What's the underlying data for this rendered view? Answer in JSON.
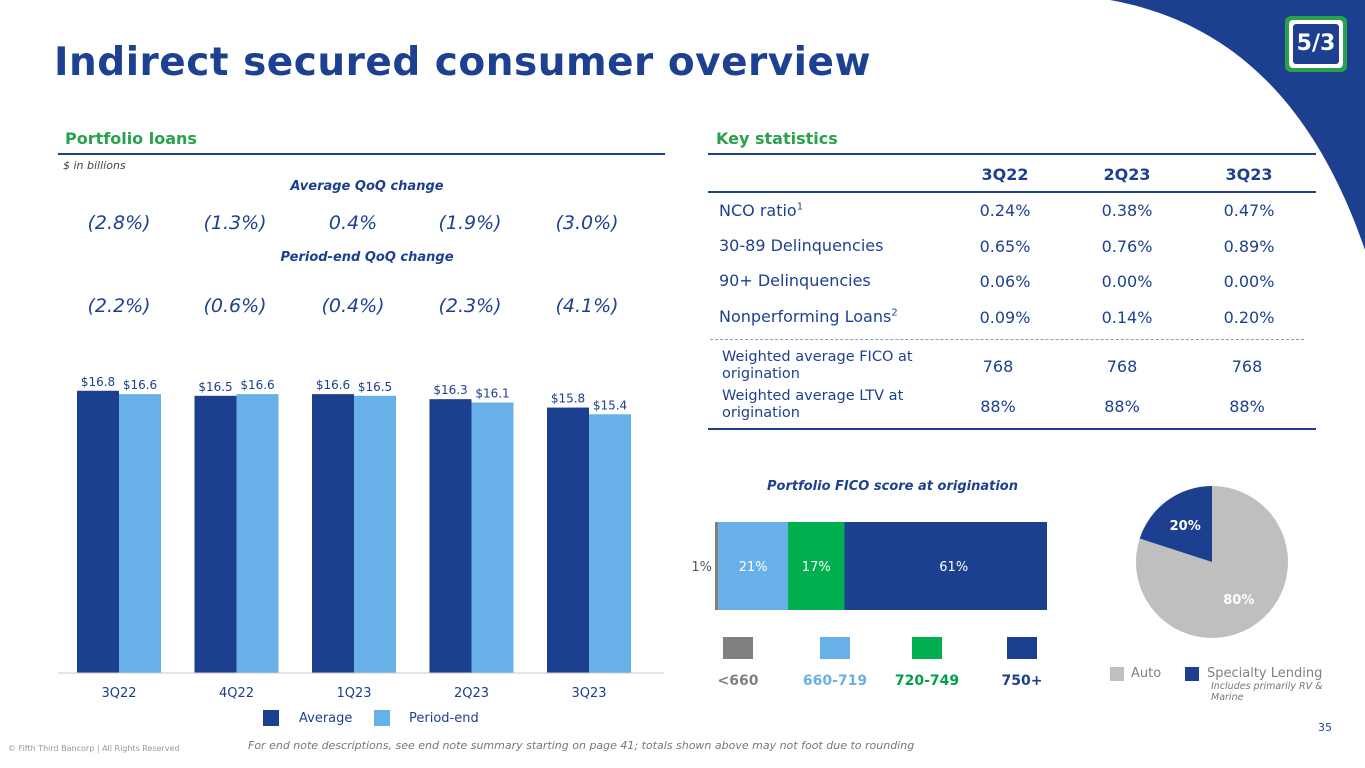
{
  "title": "Indirect secured consumer overview",
  "left": {
    "header": "Portfolio loans",
    "units": "$ in billions",
    "avg_qoq_label": "Average QoQ change",
    "avg_qoq": [
      "(2.8%)",
      "(1.3%)",
      "0.4%",
      "(1.9%)",
      "(3.0%)"
    ],
    "pe_qoq_label": "Period-end QoQ change",
    "pe_qoq": [
      "(2.2%)",
      "(0.6%)",
      "(0.4%)",
      "(2.3%)",
      "(4.1%)"
    ]
  },
  "right": {
    "header": "Key statistics",
    "columns": [
      "3Q22",
      "2Q23",
      "3Q23"
    ],
    "rows": [
      {
        "label": "NCO ratio",
        "sup": "1",
        "values": [
          "0.24%",
          "0.38%",
          "0.47%"
        ]
      },
      {
        "label": "30-89 Delinquencies",
        "sup": "",
        "values": [
          "0.65%",
          "0.76%",
          "0.89%"
        ]
      },
      {
        "label": "90+ Delinquencies",
        "sup": "",
        "values": [
          "0.06%",
          "0.00%",
          "0.00%"
        ]
      },
      {
        "label": "Nonperforming Loans",
        "sup": "2",
        "values": [
          "0.09%",
          "0.14%",
          "0.20%"
        ]
      }
    ],
    "rows2": [
      {
        "label": "Weighted average FICO at origination",
        "values": [
          "768",
          "768",
          "768"
        ]
      },
      {
        "label": "Weighted average LTV at origination",
        "values": [
          "88%",
          "88%",
          "88%"
        ]
      }
    ]
  },
  "colors": {
    "dark_blue": "#1d3f8f",
    "light_blue": "#68b1e8",
    "green": "#00b050",
    "gray": "#808080",
    "pie_gray": "#bfbfbf",
    "header_green": "#2aa14b"
  },
  "chart_data": [
    {
      "type": "bar",
      "title": "Portfolio loans",
      "categories": [
        "3Q22",
        "4Q22",
        "1Q23",
        "2Q23",
        "3Q23"
      ],
      "series": [
        {
          "name": "Average",
          "values": [
            16.8,
            16.5,
            16.6,
            16.3,
            15.8
          ],
          "labels": [
            "$16.8",
            "$16.5",
            "$16.6",
            "$16.3",
            "$15.8"
          ]
        },
        {
          "name": "Period-end",
          "values": [
            16.6,
            16.6,
            16.5,
            16.1,
            15.4
          ],
          "labels": [
            "$16.6",
            "$16.6",
            "$16.5",
            "$16.1",
            "$15.4"
          ]
        }
      ],
      "ylim": [
        0,
        17.5
      ]
    },
    {
      "type": "bar",
      "stacked": true,
      "orientation": "horizontal",
      "title": "Portfolio FICO score at origination",
      "segments": [
        {
          "name": "<660",
          "value": 1,
          "label": "1%"
        },
        {
          "name": "660-719",
          "value": 21,
          "label": "21%"
        },
        {
          "name": "720-749",
          "value": 17,
          "label": "17%"
        },
        {
          "name": "750+",
          "value": 61,
          "label": "61%"
        }
      ]
    },
    {
      "type": "pie",
      "slices": [
        {
          "name": "Auto",
          "value": 80,
          "label": "80%"
        },
        {
          "name": "Specialty Lending",
          "value": 20,
          "label": "20%"
        }
      ],
      "note": "Includes primarily RV & Marine"
    }
  ],
  "footer": {
    "note": "For end note descriptions, see end note summary starting on page 41; totals shown above may not foot due to rounding",
    "copyright": "© Fifth Third Bancorp | All Rights Reserved",
    "page": "35"
  },
  "logo_text": "5/3"
}
